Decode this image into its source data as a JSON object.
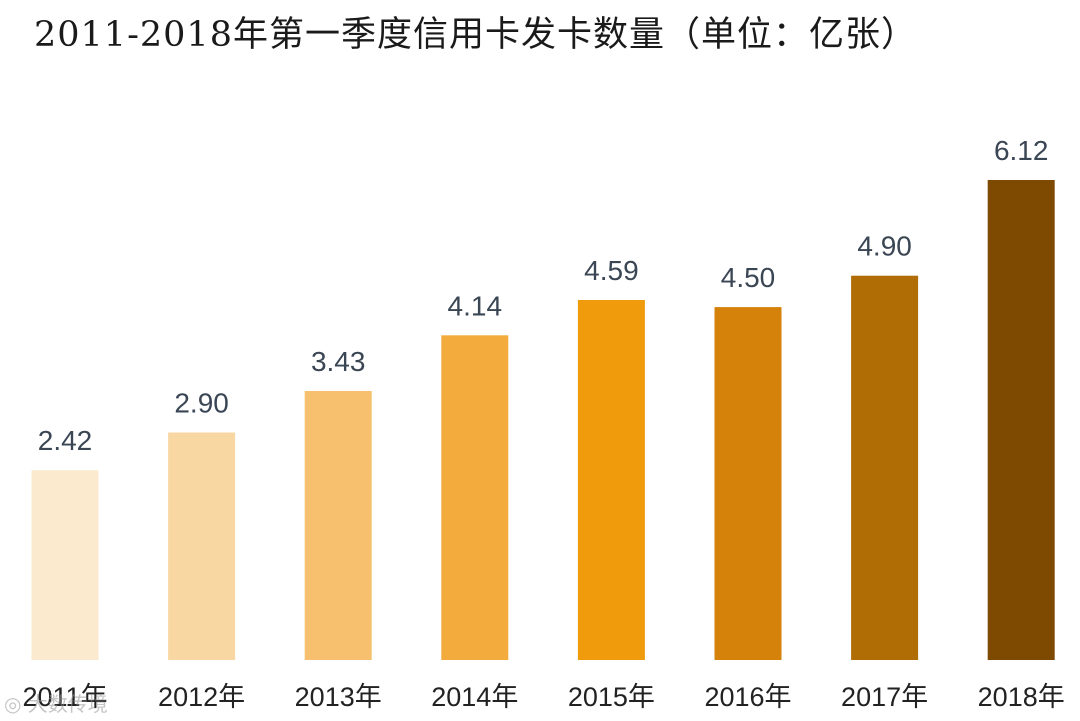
{
  "chart_data": {
    "type": "bar",
    "title": "2011-2018年第一季度信用卡发卡数量（单位：亿张）",
    "categories": [
      "2011年",
      "2012年",
      "2013年",
      "2014年",
      "2015年",
      "2016年",
      "2017年",
      "2018年"
    ],
    "values": [
      2.42,
      2.9,
      3.43,
      4.14,
      4.59,
      4.5,
      4.9,
      6.12
    ],
    "value_labels": [
      "2.42",
      "2.90",
      "3.43",
      "4.14",
      "4.59",
      "4.50",
      "4.90",
      "6.12"
    ],
    "colors": [
      "#fbeacd",
      "#f8d7a3",
      "#f6c06e",
      "#f3ab3e",
      "#ef9b0c",
      "#d4820a",
      "#b06c05",
      "#7e4a02"
    ],
    "xlabel": "",
    "ylabel": "",
    "ylim": [
      0,
      6.12
    ],
    "grid": false,
    "legend": "none"
  },
  "watermark": {
    "text": "◎ 大数传境"
  }
}
